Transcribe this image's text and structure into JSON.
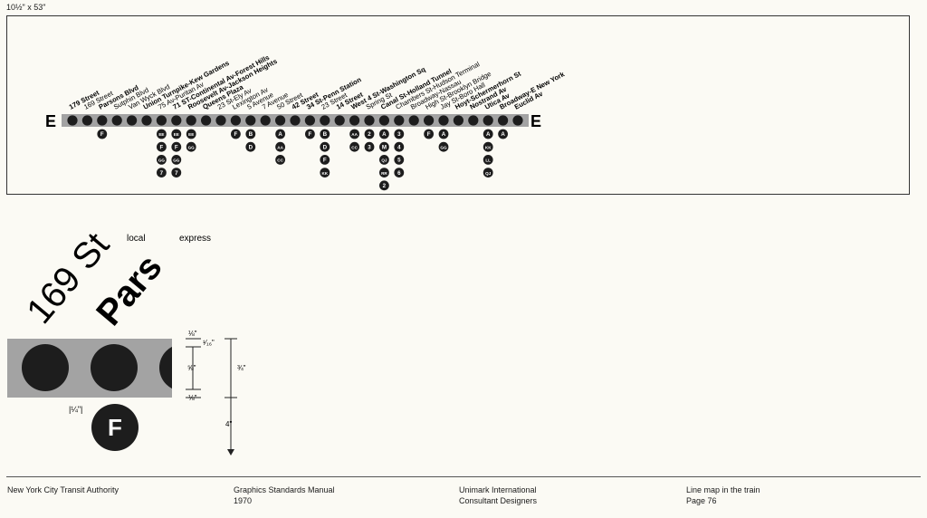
{
  "size_label": "10½\" x 53\"",
  "line": {
    "letter": "E",
    "stations": [
      {
        "name": "179 Street",
        "bold": true,
        "transfers": []
      },
      {
        "name": "169 Street",
        "bold": false,
        "transfers": []
      },
      {
        "name": "Parsons Blvd",
        "bold": true,
        "transfers": [
          "F"
        ]
      },
      {
        "name": "Sutphin Blvd",
        "bold": false,
        "transfers": []
      },
      {
        "name": "Van Wyck Blvd",
        "bold": false,
        "transfers": []
      },
      {
        "name": "Union Turnpike-Kew Gardens",
        "bold": true,
        "transfers": []
      },
      {
        "name": "75 Av-Puritan Av",
        "bold": false,
        "transfers": [
          "EE",
          "F",
          "GG",
          "7"
        ]
      },
      {
        "name": "71 ST-Continental Av-Forest Hills",
        "bold": true,
        "transfers": [
          "EE",
          "F",
          "GG",
          "7"
        ]
      },
      {
        "name": "Roosevelt Av-Jackson Heights",
        "bold": true,
        "transfers": [
          "EE",
          "GG"
        ]
      },
      {
        "name": "Queens Plaza",
        "bold": true,
        "transfers": []
      },
      {
        "name": "23 St-Ely Av",
        "bold": false,
        "transfers": []
      },
      {
        "name": "Lexington Av",
        "bold": false,
        "transfers": [
          "F"
        ]
      },
      {
        "name": "5 Avenue",
        "bold": false,
        "transfers": [
          "B",
          "D"
        ]
      },
      {
        "name": "7 Avenue",
        "bold": false,
        "transfers": []
      },
      {
        "name": "50 Street",
        "bold": false,
        "transfers": [
          "A",
          "AA",
          "CC"
        ]
      },
      {
        "name": "42 Street",
        "bold": true,
        "transfers": []
      },
      {
        "name": "34 St-Penn Station",
        "bold": true,
        "transfers": [
          "F"
        ]
      },
      {
        "name": "23 Street",
        "bold": false,
        "transfers": [
          "B",
          "D",
          "F",
          "KK"
        ]
      },
      {
        "name": "14 Street",
        "bold": true,
        "transfers": []
      },
      {
        "name": "West 4 St-Washington Sq",
        "bold": true,
        "transfers": [
          "AA",
          "CC"
        ]
      },
      {
        "name": "Spring St",
        "bold": false,
        "transfers": [
          "2",
          "3"
        ]
      },
      {
        "name": "Canal St-Holland Tunnel",
        "bold": true,
        "transfers": [
          "A",
          "M",
          "QJ",
          "RR",
          "2"
        ]
      },
      {
        "name": "Chambers St-Hudson Terminal",
        "bold": false,
        "transfers": [
          "3",
          "4",
          "5",
          "6"
        ]
      },
      {
        "name": "Broadway-Nassau",
        "bold": false,
        "transfers": []
      },
      {
        "name": "High St-Brooklyn Bridge",
        "bold": false,
        "transfers": [
          "F"
        ]
      },
      {
        "name": "Jay St-Boro Hall",
        "bold": false,
        "transfers": [
          "A",
          "GG"
        ]
      },
      {
        "name": "Hoyt-Schermerhorn St",
        "bold": true,
        "transfers": []
      },
      {
        "name": "Nostrand Av",
        "bold": true,
        "transfers": []
      },
      {
        "name": "Utica Av",
        "bold": true,
        "transfers": [
          "A",
          "KK",
          "LL",
          "QJ"
        ]
      },
      {
        "name": "Broadway-E New York",
        "bold": true,
        "transfers": [
          "A"
        ]
      },
      {
        "name": "Euclid Av",
        "bold": true,
        "transfers": []
      }
    ]
  },
  "detail": {
    "local_label": "local",
    "express_label": "express",
    "local_example": "169 St",
    "express_example": "Pars",
    "route_letter": "F",
    "dim_quarter": "|¼\"|",
    "dim_one_eighth_top": "⅛\"",
    "dim_one_sixteenth": "¹⁄₁₆\"",
    "dim_five_eighths": "⅝\"",
    "dim_one_eighth_bottom": "⅛\"",
    "dim_three_quarters": "¾\"",
    "dim_four": "4\""
  },
  "footer": {
    "col1_line1": "New York City Transit Authority",
    "col2_line1": "Graphics Standards Manual",
    "col2_line2": "1970",
    "col3_line1": "Unimark International",
    "col3_line2": "Consultant Designers",
    "col4_line1": "Line map in the train",
    "col4_line2": "Page 76"
  }
}
